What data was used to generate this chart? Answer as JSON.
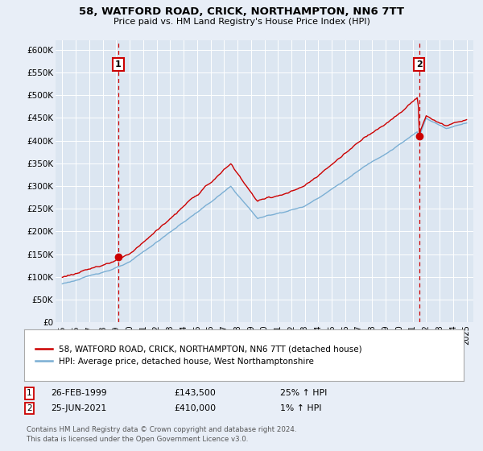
{
  "title": "58, WATFORD ROAD, CRICK, NORTHAMPTON, NN6 7TT",
  "subtitle": "Price paid vs. HM Land Registry's House Price Index (HPI)",
  "background_color": "#e8eef7",
  "plot_bg_color": "#dce6f1",
  "red_line_color": "#cc0000",
  "blue_line_color": "#7bafd4",
  "dashed_line_color": "#cc0000",
  "marker1_date_x": 1999.15,
  "marker2_date_x": 2021.48,
  "marker1_label": "1",
  "marker2_label": "2",
  "legend_line1": "58, WATFORD ROAD, CRICK, NORTHAMPTON, NN6 7TT (detached house)",
  "legend_line2": "HPI: Average price, detached house, West Northamptonshire",
  "footnote": "Contains HM Land Registry data © Crown copyright and database right 2024.\nThis data is licensed under the Open Government Licence v3.0.",
  "ylim": [
    0,
    620000
  ],
  "yticks": [
    0,
    50000,
    100000,
    150000,
    200000,
    250000,
    300000,
    350000,
    400000,
    450000,
    500000,
    550000,
    600000
  ],
  "ytick_labels": [
    "£0",
    "£50K",
    "£100K",
    "£150K",
    "£200K",
    "£250K",
    "£300K",
    "£350K",
    "£400K",
    "£450K",
    "£500K",
    "£550K",
    "£600K"
  ],
  "xlim": [
    1994.5,
    2025.5
  ],
  "xticks": [
    1995,
    1996,
    1997,
    1998,
    1999,
    2000,
    2001,
    2002,
    2003,
    2004,
    2005,
    2006,
    2007,
    2008,
    2009,
    2010,
    2011,
    2012,
    2013,
    2014,
    2015,
    2016,
    2017,
    2018,
    2019,
    2020,
    2021,
    2022,
    2023,
    2024,
    2025
  ],
  "purchase1_year": 1999.15,
  "purchase1_price": 143500,
  "purchase2_year": 2021.48,
  "purchase2_price": 410000,
  "ann1_date": "26-FEB-1999",
  "ann1_price": "£143,500",
  "ann1_hpi": "25% ↑ HPI",
  "ann2_date": "25-JUN-2021",
  "ann2_price": "£410,000",
  "ann2_hpi": "1% ↑ HPI"
}
